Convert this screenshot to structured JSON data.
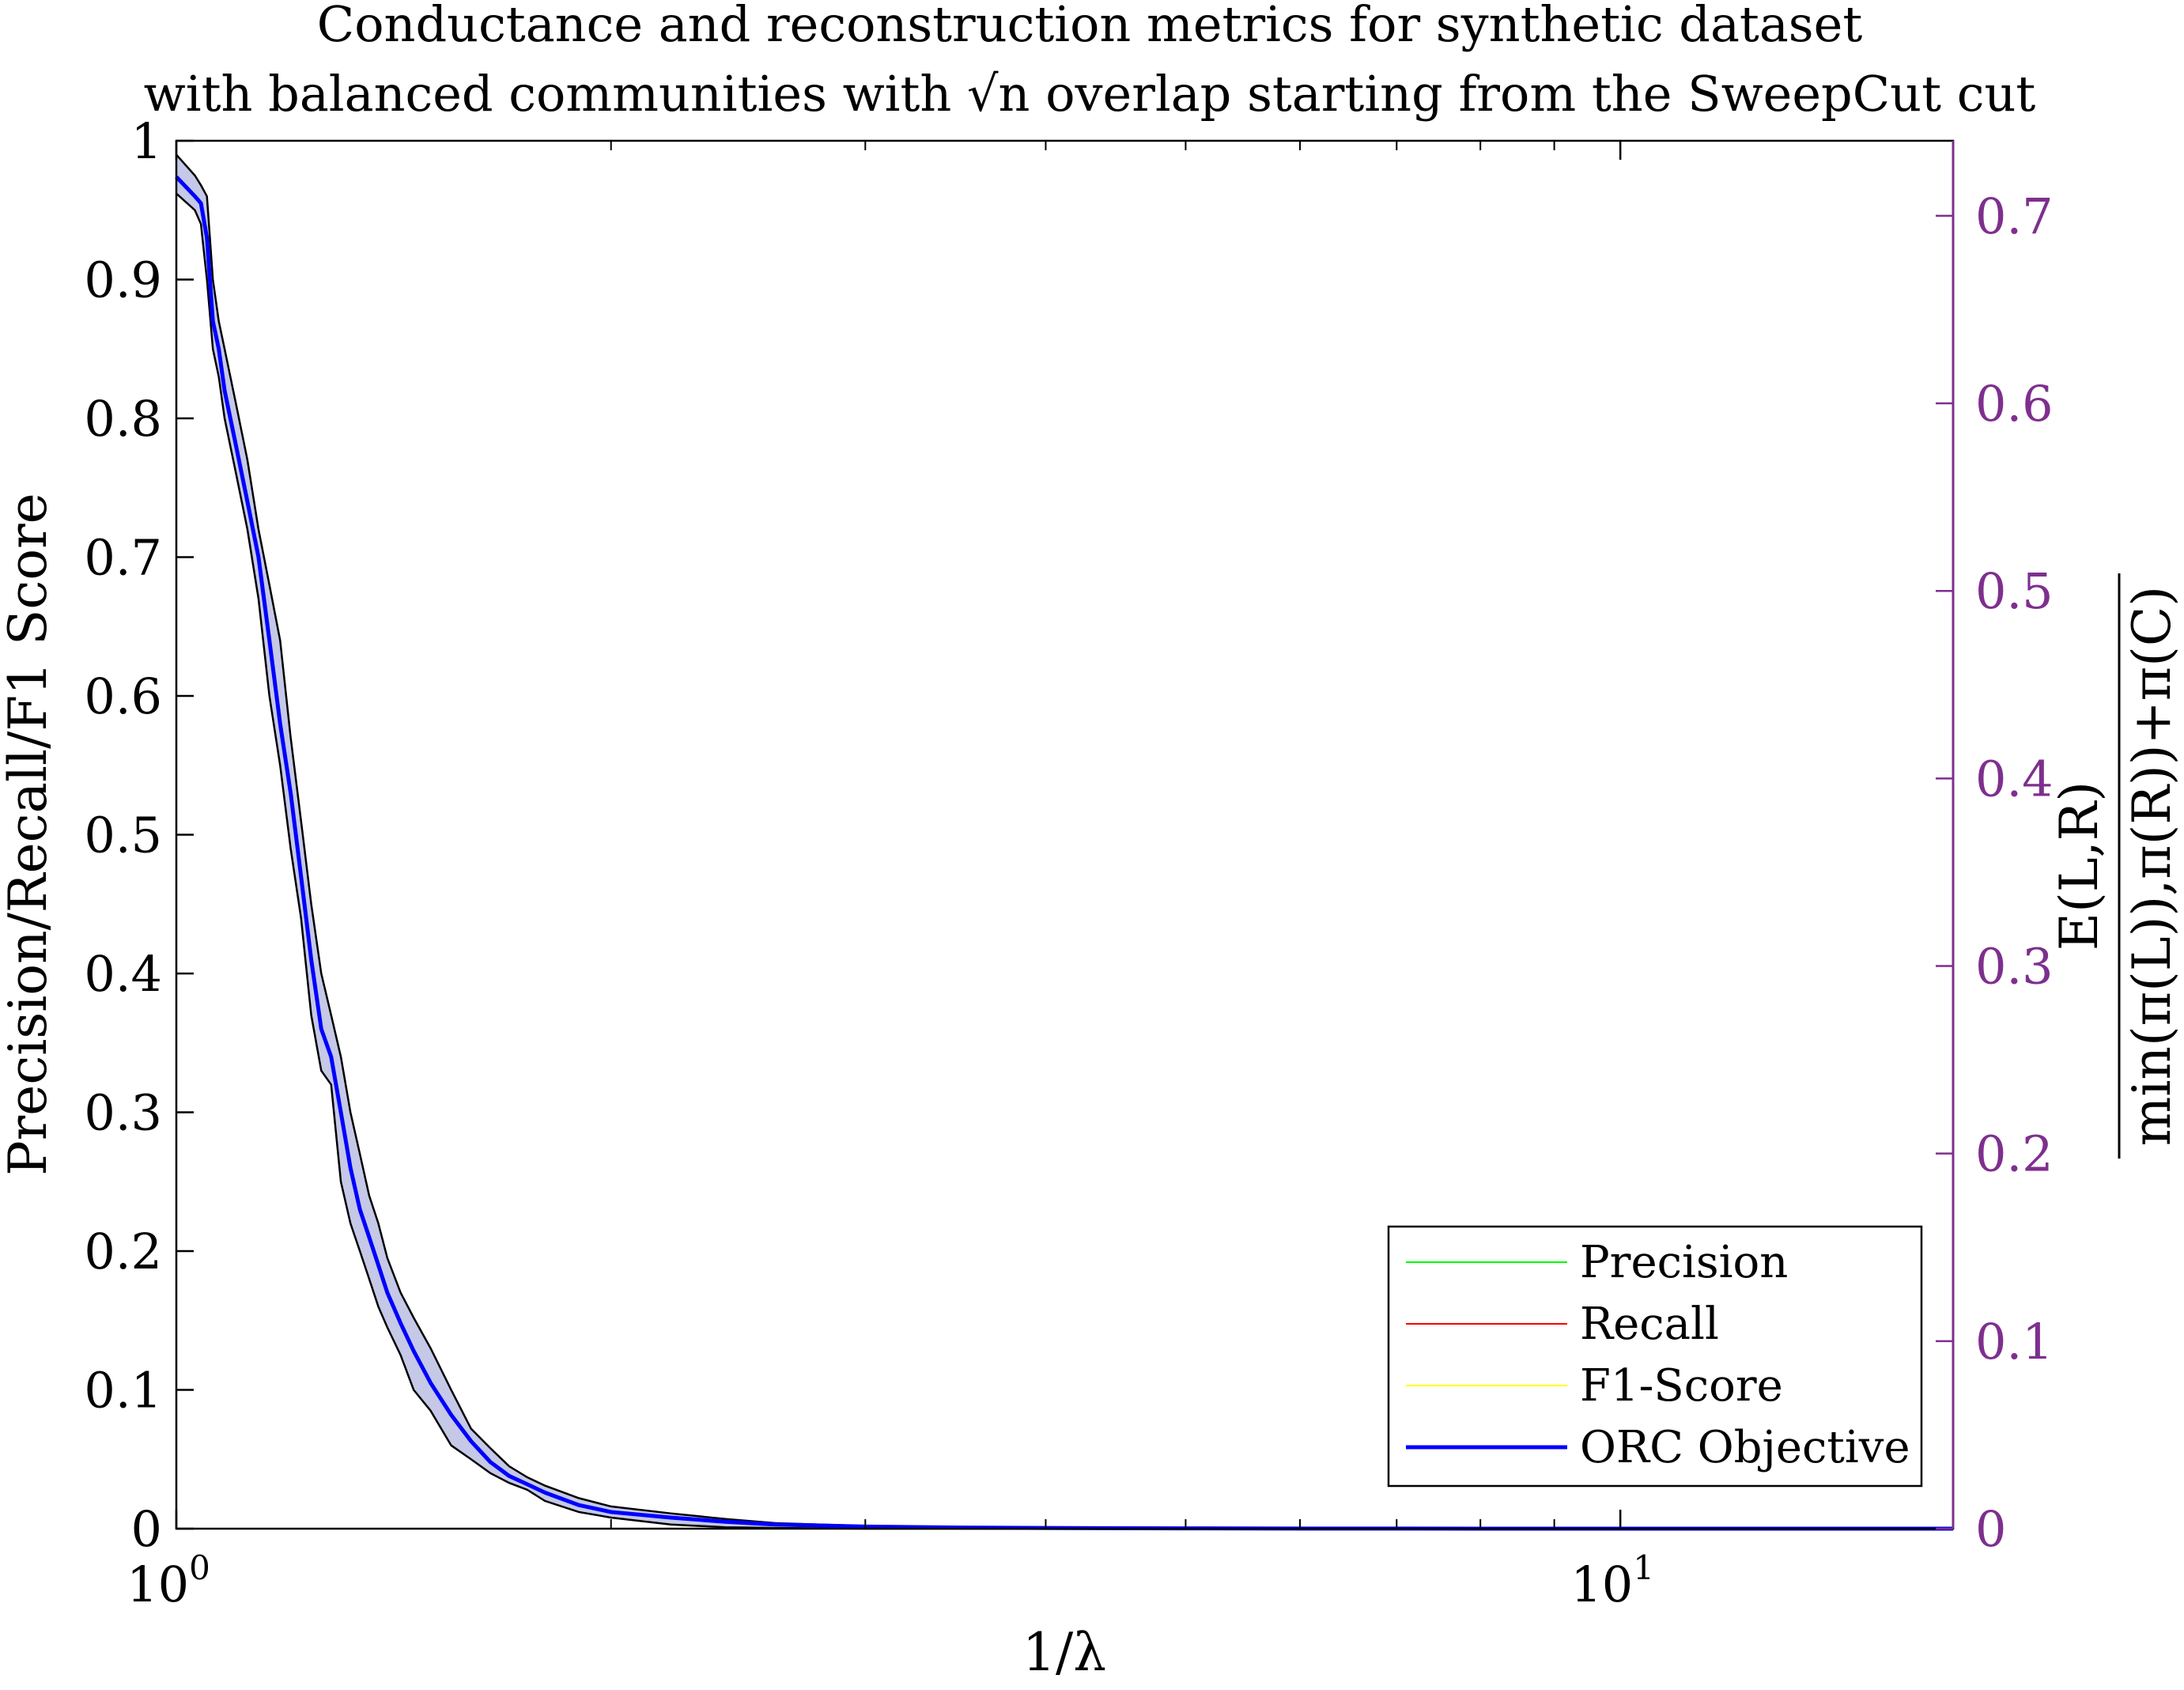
{
  "chart_data": {
    "type": "line",
    "title": [
      "Conductance and reconstruction metrics for synthetic dataset",
      "with balanced communities with √n overlap starting from the SweepCut cut"
    ],
    "xlabel": "1/λ",
    "ylabel_left": "Precision/Recall/F1 Score",
    "ylabel_right": {
      "numerator": "E(L,R)",
      "denominator": "min(π(L)),π(R))+π(C)"
    },
    "x_scale": "log",
    "xlim": [
      1,
      17
    ],
    "ylim_left": [
      0,
      1
    ],
    "ylim_right": [
      0,
      0.74
    ],
    "x_ticks": [
      {
        "base": "10",
        "exp": "0"
      },
      {
        "base": "10",
        "exp": "1"
      }
    ],
    "y_ticks_left": [
      "0",
      "0.1",
      "0.2",
      "0.3",
      "0.4",
      "0.5",
      "0.6",
      "0.7",
      "0.8",
      "0.9",
      "1"
    ],
    "y_ticks_right": [
      "0",
      "0.1",
      "0.2",
      "0.3",
      "0.4",
      "0.5",
      "0.6",
      "0.7"
    ],
    "right_axis_color": "#7e2f8e",
    "grid": false,
    "legend_position": "bottom-right",
    "legend": [
      {
        "name": "Precision",
        "color": "#00ff00",
        "width": 2
      },
      {
        "name": "Recall",
        "color": "#ff0000",
        "width": 2
      },
      {
        "name": "F1-Score",
        "color": "#ffff00",
        "width": 2
      },
      {
        "name": "ORC Objective",
        "color": "#0000ff",
        "width": 5
      }
    ],
    "series": [
      {
        "name": "ORC Objective",
        "color": "#0000ff",
        "band_color": "#c5c8e6",
        "x": [
          1.0,
          1.03,
          1.04,
          1.05,
          1.06,
          1.07,
          1.08,
          1.1,
          1.12,
          1.14,
          1.16,
          1.18,
          1.2,
          1.22,
          1.24,
          1.26,
          1.28,
          1.3,
          1.32,
          1.34,
          1.36,
          1.38,
          1.4,
          1.43,
          1.46,
          1.5,
          1.55,
          1.6,
          1.65,
          1.7,
          1.75,
          1.8,
          1.9,
          2.0,
          2.2,
          2.4,
          2.6,
          3.0,
          3.5,
          4.0,
          5.0,
          6.0,
          8.0,
          10.0,
          13.0,
          17.0
        ],
        "y": [
          0.974,
          0.96,
          0.955,
          0.93,
          0.87,
          0.85,
          0.82,
          0.78,
          0.74,
          0.7,
          0.64,
          0.58,
          0.53,
          0.47,
          0.41,
          0.36,
          0.34,
          0.3,
          0.26,
          0.23,
          0.21,
          0.19,
          0.17,
          0.148,
          0.128,
          0.105,
          0.082,
          0.063,
          0.048,
          0.038,
          0.032,
          0.026,
          0.017,
          0.012,
          0.008,
          0.005,
          0.003,
          0.0015,
          0.0008,
          0.0005,
          0.0002,
          0.0001,
          0.0,
          0.0,
          0.0,
          0.0
        ],
        "y_upper": [
          0.99,
          0.975,
          0.968,
          0.96,
          0.9,
          0.87,
          0.85,
          0.81,
          0.77,
          0.72,
          0.68,
          0.64,
          0.57,
          0.51,
          0.45,
          0.4,
          0.37,
          0.34,
          0.3,
          0.27,
          0.24,
          0.22,
          0.195,
          0.17,
          0.152,
          0.13,
          0.1,
          0.072,
          0.058,
          0.045,
          0.037,
          0.031,
          0.022,
          0.016,
          0.011,
          0.007,
          0.004,
          0.002,
          0.001,
          0.0007,
          0.0003,
          0.0002,
          0.0001,
          0.0,
          0.0,
          0.0
        ],
        "y_lower": [
          0.962,
          0.95,
          0.94,
          0.9,
          0.85,
          0.83,
          0.8,
          0.76,
          0.72,
          0.67,
          0.6,
          0.55,
          0.49,
          0.44,
          0.37,
          0.33,
          0.32,
          0.25,
          0.22,
          0.2,
          0.18,
          0.16,
          0.145,
          0.125,
          0.1,
          0.085,
          0.06,
          0.05,
          0.04,
          0.033,
          0.028,
          0.02,
          0.012,
          0.008,
          0.003,
          0.001,
          0.0005,
          0.0,
          0.0,
          0.0,
          0.0,
          0.0,
          0.0,
          0.0,
          0.0,
          0.0
        ]
      }
    ]
  }
}
